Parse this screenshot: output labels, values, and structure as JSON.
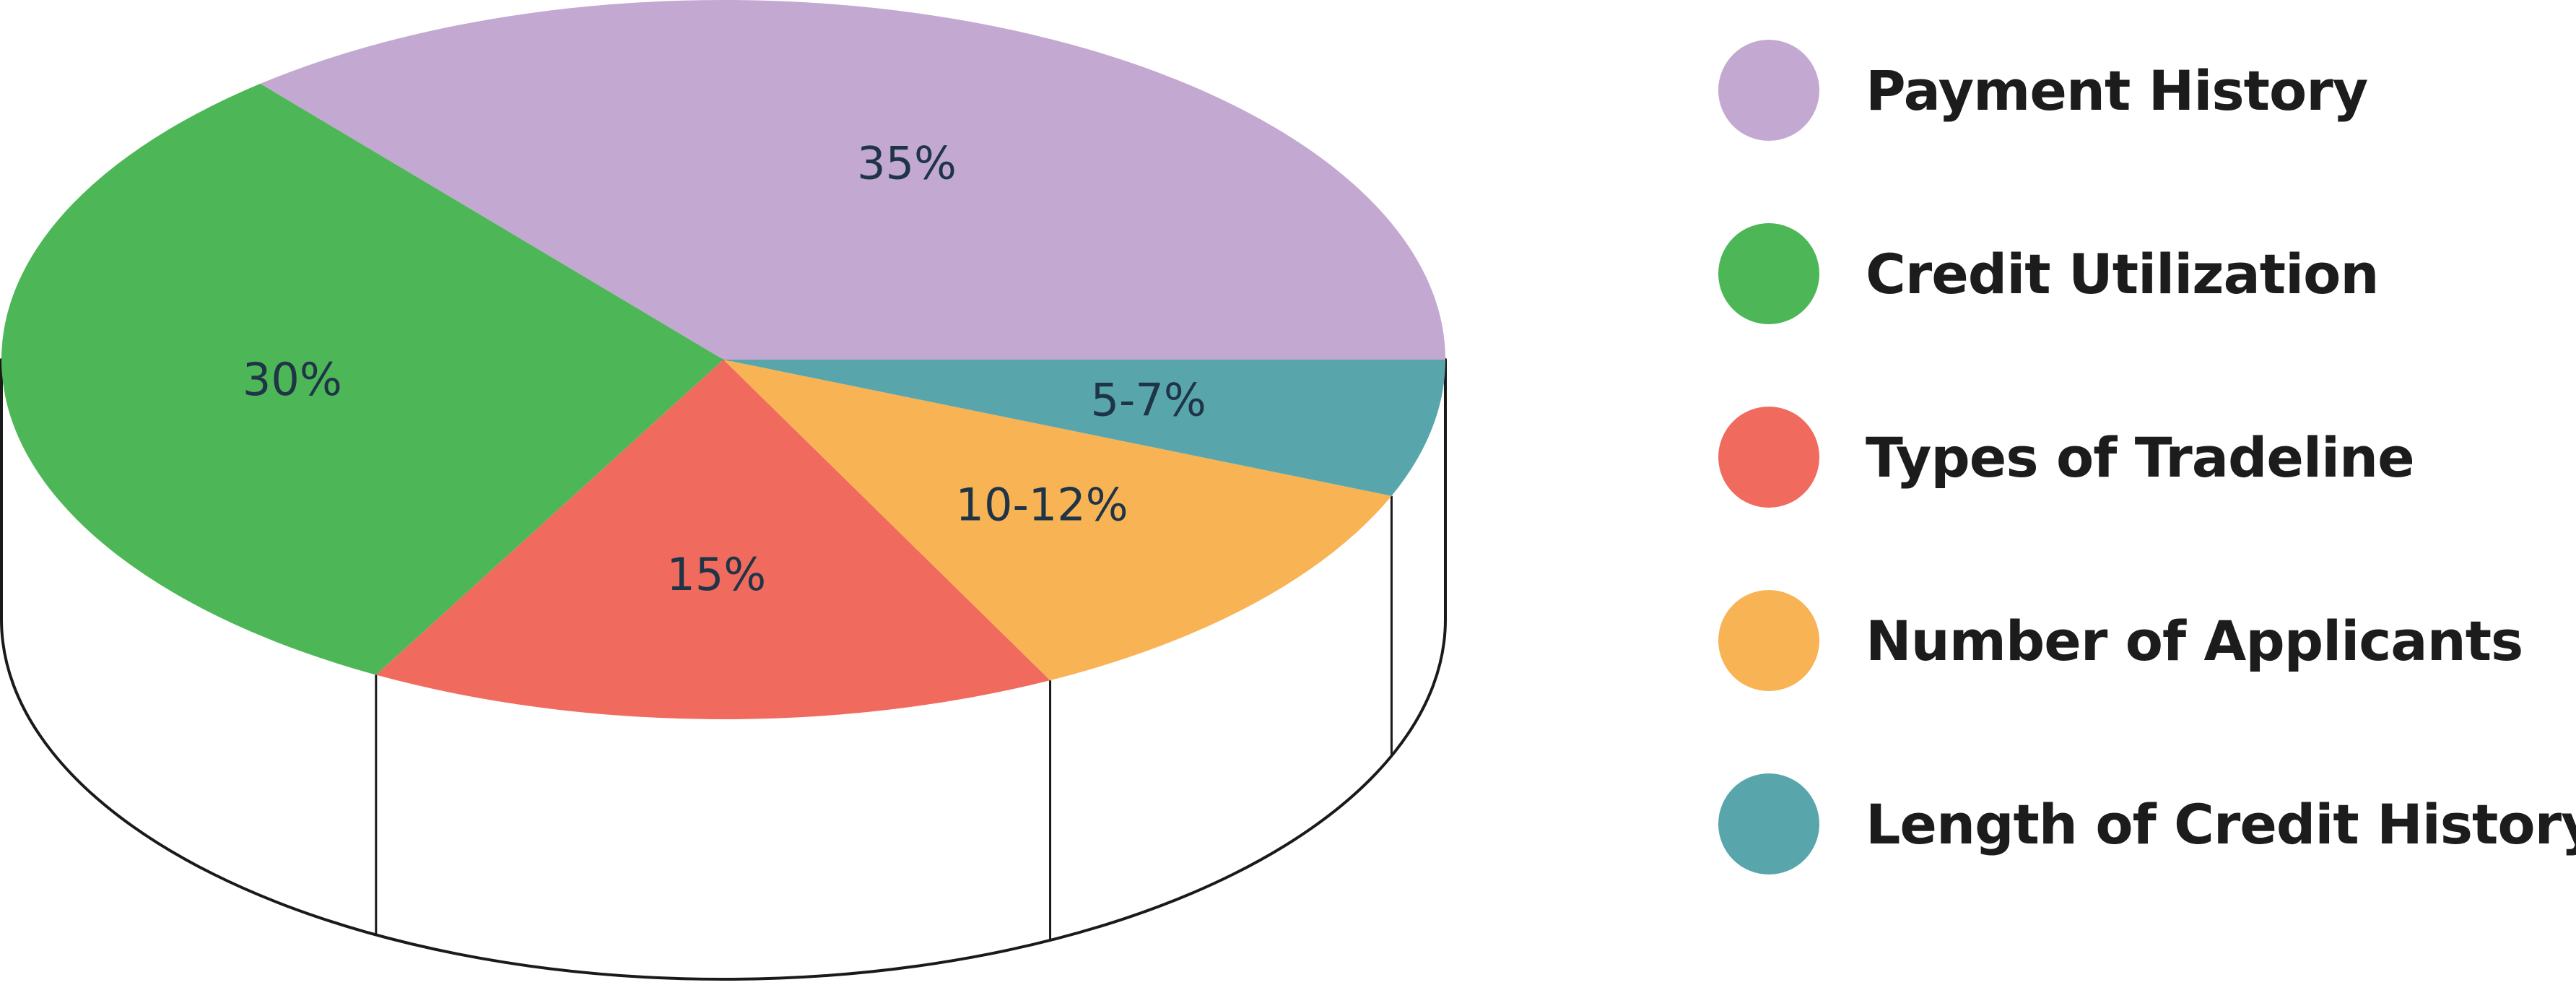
{
  "chart_data": {
    "type": "pie",
    "style": "3d",
    "slices": [
      {
        "name": "Payment History",
        "label": "35%",
        "value": 35,
        "color": "#c3a8d1"
      },
      {
        "name": "Credit Utilization",
        "label": "30%",
        "value": 30,
        "color": "#4db757"
      },
      {
        "name": "Types of Tradeline",
        "label": "15%",
        "value": 15,
        "color": "#f06b5e"
      },
      {
        "name": "Number of Applicants",
        "label": "10-12%",
        "value": 11,
        "color": "#f8b354"
      },
      {
        "name": "Length of Credit History",
        "label": "5-7%",
        "value": 6,
        "color": "#58a6ac"
      }
    ],
    "legend_position": "right"
  }
}
